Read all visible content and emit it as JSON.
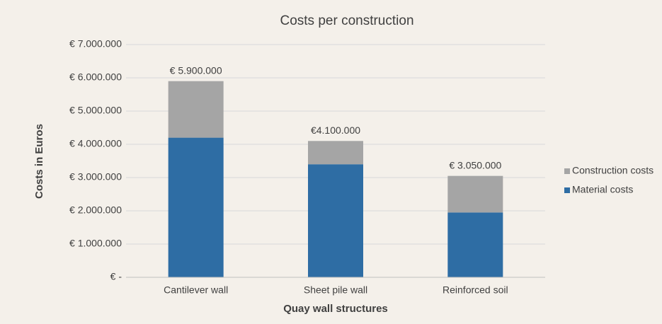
{
  "chart_data": {
    "type": "stacked_bar",
    "title": "Costs per construction",
    "xlabel": "Quay wall structures",
    "ylabel": "Costs in Euros",
    "categories": [
      "Cantilever wall",
      "Sheet pile wall",
      "Reinforced soil"
    ],
    "series": [
      {
        "name": "Material costs",
        "color": "#2e6da4",
        "values": [
          4200000,
          3400000,
          1950000
        ]
      },
      {
        "name": "Construction costs",
        "color": "#a5a5a5",
        "values": [
          1700000,
          700000,
          1100000
        ]
      }
    ],
    "annotations": [
      "€ 5.900.000",
      "€4.100.000",
      "€ 3.050.000"
    ],
    "ylim": [
      0,
      7000000
    ],
    "yticks": [
      {
        "value": 0,
        "label": "€ -"
      },
      {
        "value": 1000000,
        "label": "€ 1.000.000"
      },
      {
        "value": 2000000,
        "label": "€ 2.000.000"
      },
      {
        "value": 3000000,
        "label": "€ 3.000.000"
      },
      {
        "value": 4000000,
        "label": "€ 4.000.000"
      },
      {
        "value": 5000000,
        "label": "€ 5.000.000"
      },
      {
        "value": 6000000,
        "label": "€ 6.000.000"
      },
      {
        "value": 7000000,
        "label": "€ 7.000.000"
      }
    ],
    "grid": true,
    "legend": "right"
  }
}
